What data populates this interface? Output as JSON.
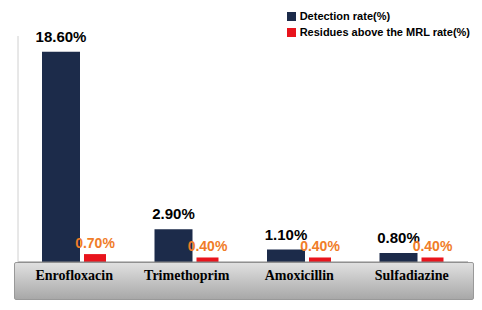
{
  "chart_data": {
    "type": "bar",
    "categories": [
      "Enrofloxacin",
      "Trimethoprim",
      "Amoxicillin",
      "Sulfadiazine"
    ],
    "series": [
      {
        "name": "Detection rate(%)",
        "color": "#1c2b4a",
        "values": [
          18.6,
          2.9,
          1.1,
          0.8
        ],
        "value_labels": [
          "18.60%",
          "2.90%",
          "1.10%",
          "0.80%"
        ]
      },
      {
        "name": "Residues above the MRL rate(%)",
        "color": "#e8141c",
        "values": [
          0.7,
          0.4,
          0.4,
          0.4
        ],
        "value_labels": [
          "0.70%",
          "0.40%",
          "0.40%",
          "0.40%"
        ]
      }
    ],
    "ylim": [
      0,
      20
    ],
    "yticks": [],
    "tick_labels": "x",
    "data_labels": true,
    "legend": "upper right",
    "grid": false
  }
}
